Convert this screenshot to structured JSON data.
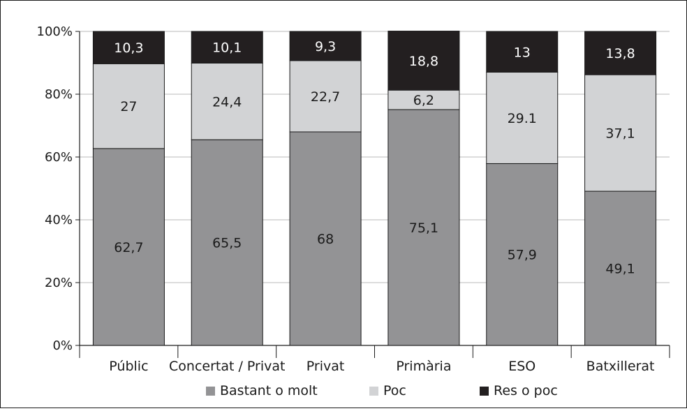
{
  "chart_data": {
    "type": "bar",
    "stacked": true,
    "categories": [
      "Públic",
      "Concertat / Privat",
      "Privat",
      "Primària",
      "ESO",
      "Batxillerat"
    ],
    "series": [
      {
        "name": "Bastant o molt",
        "values": [
          62.7,
          65.5,
          68,
          75.1,
          57.9,
          49.1
        ],
        "labels": [
          "62,7",
          "65,5",
          "68",
          "75,1",
          "57,9",
          "49,1"
        ],
        "color": "#939395"
      },
      {
        "name": "Poc",
        "values": [
          27,
          24.4,
          22.7,
          6.2,
          29.1,
          37.1
        ],
        "labels": [
          "27",
          "24,4",
          "22,7",
          "6,2",
          "29.1",
          "37,1"
        ],
        "color": "#d2d3d5"
      },
      {
        "name": "Res o poc",
        "values": [
          10.3,
          10.1,
          9.3,
          18.8,
          13,
          13.8
        ],
        "labels": [
          "10,3",
          "10,1",
          "9,3",
          "18,8",
          "13",
          "13,8"
        ],
        "color": "#231f20"
      }
    ],
    "ylim": [
      0,
      100
    ],
    "yticks": [
      "0%",
      "20%",
      "40%",
      "60%",
      "80%",
      "100%"
    ],
    "grid": true,
    "legend_position": "bottom"
  }
}
